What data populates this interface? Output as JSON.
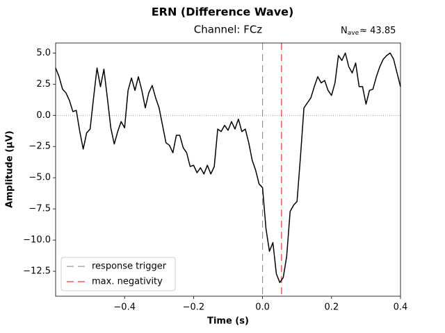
{
  "chart_data": {
    "type": "line",
    "title": "ERN (Difference Wave)",
    "subtitle": "Channel: FCz",
    "annotation": {
      "symbol": "N",
      "subscript": "ave",
      "text": "≈ 43.85"
    },
    "x_label": "Time (s)",
    "y_label": "Amplitude (µV)",
    "xlim": [
      -0.6,
      0.4
    ],
    "ylim": [
      -14.5,
      5.8
    ],
    "xticks": [
      {
        "value": -0.4,
        "label": "−0.4"
      },
      {
        "value": -0.2,
        "label": "−0.2"
      },
      {
        "value": 0,
        "label": "0.0"
      },
      0.2,
      0.4
    ],
    "yticks": [
      {
        "value": 5,
        "label": "5.0"
      },
      2.5,
      {
        "value": 0,
        "label": "0.0"
      },
      {
        "value": -2.5,
        "label": "−2.5"
      },
      {
        "value": -5,
        "label": "−5.0"
      },
      {
        "value": -7.5,
        "label": "−7.5"
      },
      {
        "value": -10,
        "label": "−10.0"
      },
      {
        "value": -12.5,
        "label": "−12.5"
      }
    ],
    "zero_line": true,
    "legend_position": "lower left",
    "x": [
      -0.6,
      -0.59,
      -0.58,
      -0.57,
      -0.56,
      -0.55,
      -0.54,
      -0.53,
      -0.52,
      -0.51,
      -0.5,
      -0.49,
      -0.48,
      -0.47,
      -0.46,
      -0.45,
      -0.44,
      -0.43,
      -0.42,
      -0.41,
      -0.4,
      -0.39,
      -0.38,
      -0.37,
      -0.36,
      -0.35,
      -0.34,
      -0.33,
      -0.32,
      -0.31,
      -0.3,
      -0.29,
      -0.28,
      -0.27,
      -0.26,
      -0.25,
      -0.24,
      -0.23,
      -0.22,
      -0.21,
      -0.2,
      -0.19,
      -0.18,
      -0.17,
      -0.16,
      -0.15,
      -0.14,
      -0.13,
      -0.12,
      -0.11,
      -0.1,
      -0.09,
      -0.08,
      -0.07,
      -0.06,
      -0.05,
      -0.04,
      -0.03,
      -0.02,
      -0.01,
      0,
      0.01,
      0.02,
      0.03,
      0.04,
      0.05,
      0.06,
      0.07,
      0.08,
      0.09,
      0.1,
      0.11,
      0.12,
      0.13,
      0.14,
      0.15,
      0.16,
      0.17,
      0.18,
      0.19,
      0.2,
      0.21,
      0.22,
      0.23,
      0.24,
      0.25,
      0.26,
      0.27,
      0.28,
      0.29,
      0.3,
      0.31,
      0.32,
      0.33,
      0.34,
      0.35,
      0.36,
      0.37,
      0.38,
      0.39,
      0.4
    ],
    "series": [
      {
        "color": "#000000",
        "values": [
          3.8,
          3.1,
          2.1,
          1.8,
          1.2,
          0.3,
          0.4,
          -1.3,
          -2.7,
          -1.4,
          -1.1,
          1.4,
          3.8,
          2.3,
          3.7,
          1.4,
          -1.0,
          -2.3,
          -1.3,
          -0.5,
          -1.0,
          2.0,
          3.0,
          2.0,
          3.1,
          2.0,
          0.6,
          1.8,
          2.4,
          1.4,
          0.6,
          -0.8,
          -2.2,
          -2.4,
          -3.0,
          -1.6,
          -1.6,
          -2.6,
          -3.0,
          -4.1,
          -4.0,
          -4.6,
          -4.2,
          -4.7,
          -4.0,
          -4.7,
          -4.1,
          -1.1,
          -1.3,
          -0.8,
          -1.2,
          -0.5,
          -1.1,
          -0.3,
          -1.3,
          -1.1,
          -2.2,
          -3.6,
          -4.4,
          -5.5,
          -5.8,
          -9.1,
          -10.9,
          -10.2,
          -12.7,
          -13.4,
          -13.0,
          -11.3,
          -7.7,
          -7.2,
          -6.9,
          -3.3,
          0.6,
          1.0,
          1.4,
          2.3,
          3.1,
          2.6,
          2.8,
          2.0,
          1.6,
          2.6,
          4.8,
          4.4,
          5.0,
          3.9,
          3.4,
          4.2,
          2.3,
          2.3,
          0.9,
          2.0,
          2.1,
          3.1,
          3.9,
          4.5,
          4.8,
          5.0,
          4.5,
          3.4,
          2.3
        ]
      }
    ],
    "vlines": [
      {
        "name": "response trigger",
        "color": "#808080",
        "x": 0
      },
      {
        "name": "max. negativity",
        "color": "#ff0000",
        "x": 0.055
      }
    ]
  }
}
